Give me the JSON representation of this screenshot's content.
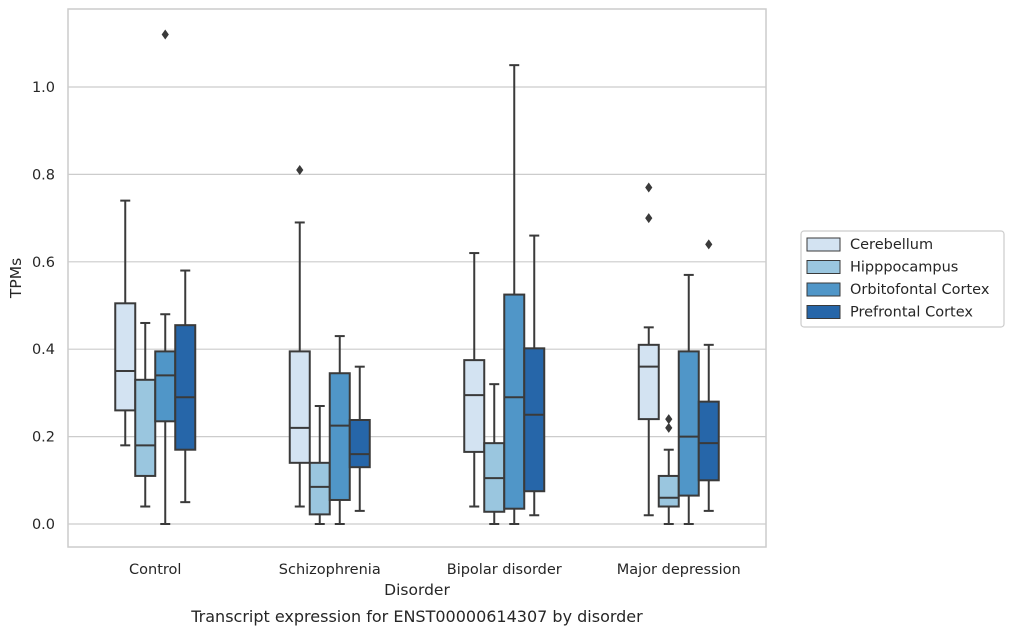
{
  "chart_data": {
    "type": "box",
    "caption": "Transcript expression for ENST00000614307 by disorder",
    "xlabel": "Disorder",
    "ylabel": "TPMs",
    "ylim": [
      -0.055,
      1.18
    ],
    "yticks": [
      "0.0",
      "0.2",
      "0.4",
      "0.6",
      "0.8",
      "1.0"
    ],
    "ytick_values": [
      0.0,
      0.2,
      0.4,
      0.6,
      0.8,
      1.0
    ],
    "grid": "horizontal",
    "legend_placement": "right",
    "categories": [
      "Control",
      "Schizophrenia",
      "Bipolar disorder",
      "Major depression"
    ],
    "series": [
      {
        "name": "Cerebellum",
        "color": "#d3e3f2",
        "boxes": [
          {
            "whisker_low": 0.18,
            "q1": 0.26,
            "median": 0.35,
            "q3": 0.505,
            "whisker_high": 0.74,
            "outliers": []
          },
          {
            "whisker_low": 0.04,
            "q1": 0.14,
            "median": 0.22,
            "q3": 0.395,
            "whisker_high": 0.69,
            "outliers": [
              0.81
            ]
          },
          {
            "whisker_low": 0.04,
            "q1": 0.165,
            "median": 0.295,
            "q3": 0.375,
            "whisker_high": 0.62,
            "outliers": []
          },
          {
            "whisker_low": 0.02,
            "q1": 0.24,
            "median": 0.36,
            "q3": 0.41,
            "whisker_high": 0.45,
            "outliers": [
              0.7,
              0.77
            ]
          }
        ]
      },
      {
        "name": "Hipppocampus",
        "color": "#9ac6df",
        "boxes": [
          {
            "whisker_low": 0.04,
            "q1": 0.11,
            "median": 0.18,
            "q3": 0.33,
            "whisker_high": 0.46,
            "outliers": []
          },
          {
            "whisker_low": 0.0,
            "q1": 0.022,
            "median": 0.085,
            "q3": 0.14,
            "whisker_high": 0.27,
            "outliers": []
          },
          {
            "whisker_low": 0.0,
            "q1": 0.028,
            "median": 0.105,
            "q3": 0.185,
            "whisker_high": 0.32,
            "outliers": []
          },
          {
            "whisker_low": 0.0,
            "q1": 0.04,
            "median": 0.06,
            "q3": 0.11,
            "whisker_high": 0.17,
            "outliers": [
              0.22,
              0.24
            ]
          }
        ]
      },
      {
        "name": "Orbitofontal Cortex",
        "color": "#5096c8",
        "boxes": [
          {
            "whisker_low": 0.0,
            "q1": 0.235,
            "median": 0.34,
            "q3": 0.395,
            "whisker_high": 0.48,
            "outliers": [
              1.12
            ]
          },
          {
            "whisker_low": 0.0,
            "q1": 0.055,
            "median": 0.225,
            "q3": 0.345,
            "whisker_high": 0.43,
            "outliers": []
          },
          {
            "whisker_low": 0.0,
            "q1": 0.035,
            "median": 0.29,
            "q3": 0.525,
            "whisker_high": 1.05,
            "outliers": []
          },
          {
            "whisker_low": 0.0,
            "q1": 0.065,
            "median": 0.2,
            "q3": 0.395,
            "whisker_high": 0.57,
            "outliers": []
          }
        ]
      },
      {
        "name": "Prefrontal Cortex",
        "color": "#2666a9",
        "boxes": [
          {
            "whisker_low": 0.05,
            "q1": 0.17,
            "median": 0.29,
            "q3": 0.455,
            "whisker_high": 0.58,
            "outliers": []
          },
          {
            "whisker_low": 0.03,
            "q1": 0.13,
            "median": 0.16,
            "q3": 0.238,
            "whisker_high": 0.36,
            "outliers": []
          },
          {
            "whisker_low": 0.02,
            "q1": 0.075,
            "median": 0.25,
            "q3": 0.402,
            "whisker_high": 0.66,
            "outliers": []
          },
          {
            "whisker_low": 0.03,
            "q1": 0.1,
            "median": 0.185,
            "q3": 0.28,
            "whisker_high": 0.41,
            "outliers": [
              0.64
            ]
          }
        ]
      }
    ]
  },
  "style": {
    "line_color": "#3a3a3a",
    "grid_color": "#cccccc",
    "frame_color": "#cccccc",
    "text_color": "#262626"
  }
}
